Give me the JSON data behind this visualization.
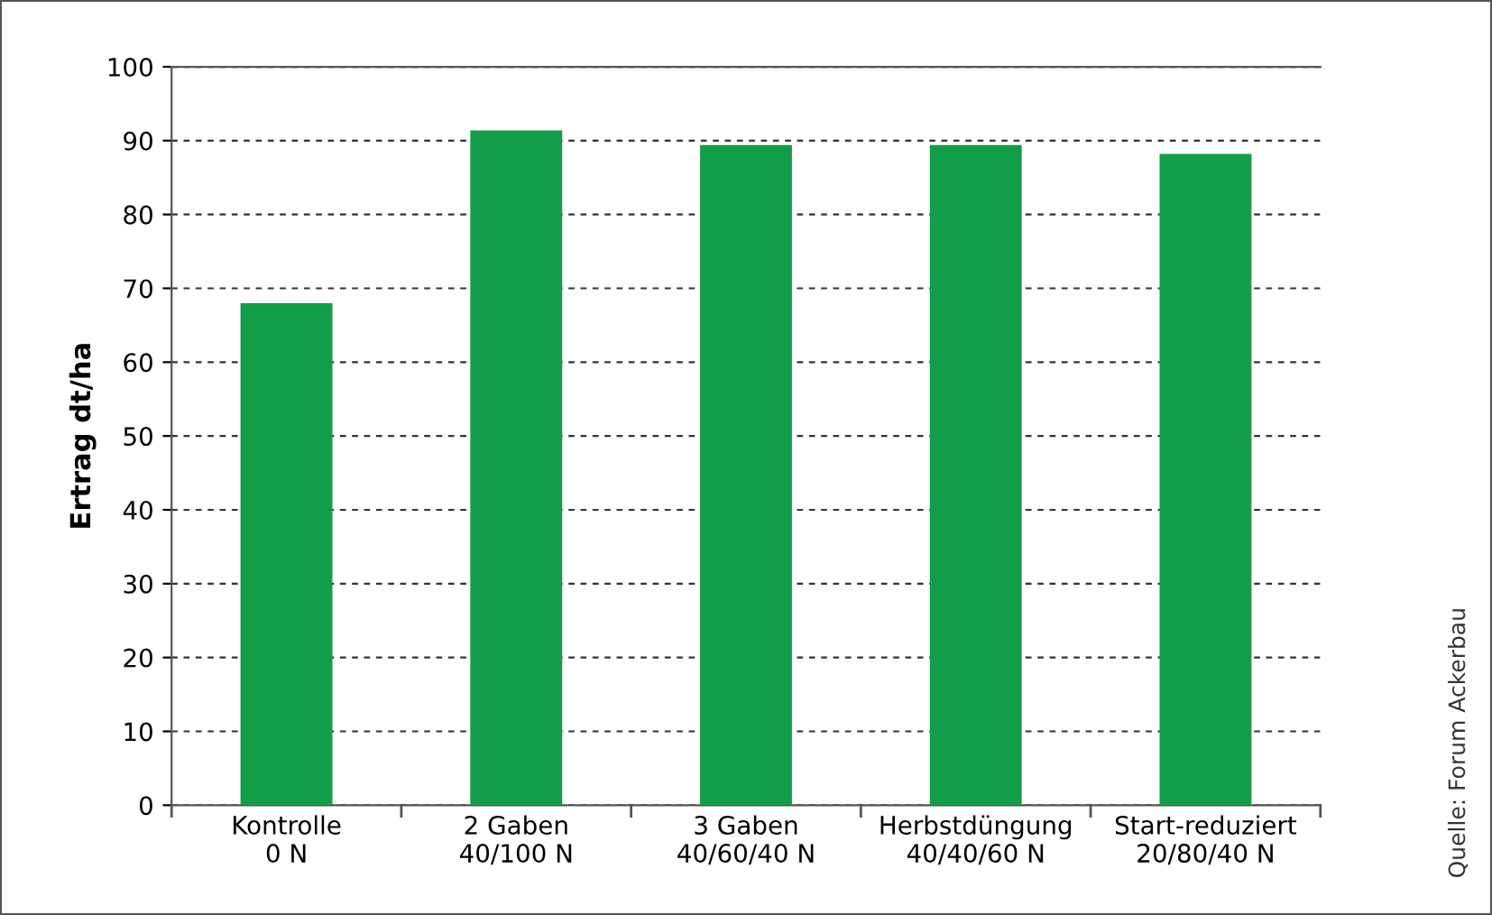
{
  "chart_data": {
    "type": "bar",
    "ylabel": "Ertrag dt/ha",
    "categories": [
      "Kontrolle\n0 N",
      "2 Gaben\n40/100 N",
      "3 Gaben\n40/60/40 N",
      "Herbstdüngung\n40/40/60 N",
      "Start-reduziert\n20/80/40 N"
    ],
    "values": [
      68,
      91.4,
      89.4,
      89.4,
      88.2
    ],
    "color": "#139d48",
    "ylim": [
      0,
      100
    ],
    "yticks": [
      0,
      10,
      20,
      30,
      40,
      50,
      60,
      70,
      80,
      90,
      100
    ],
    "grid": "y",
    "annotations": [
      "Quelle: Forum Ackerbau"
    ]
  }
}
